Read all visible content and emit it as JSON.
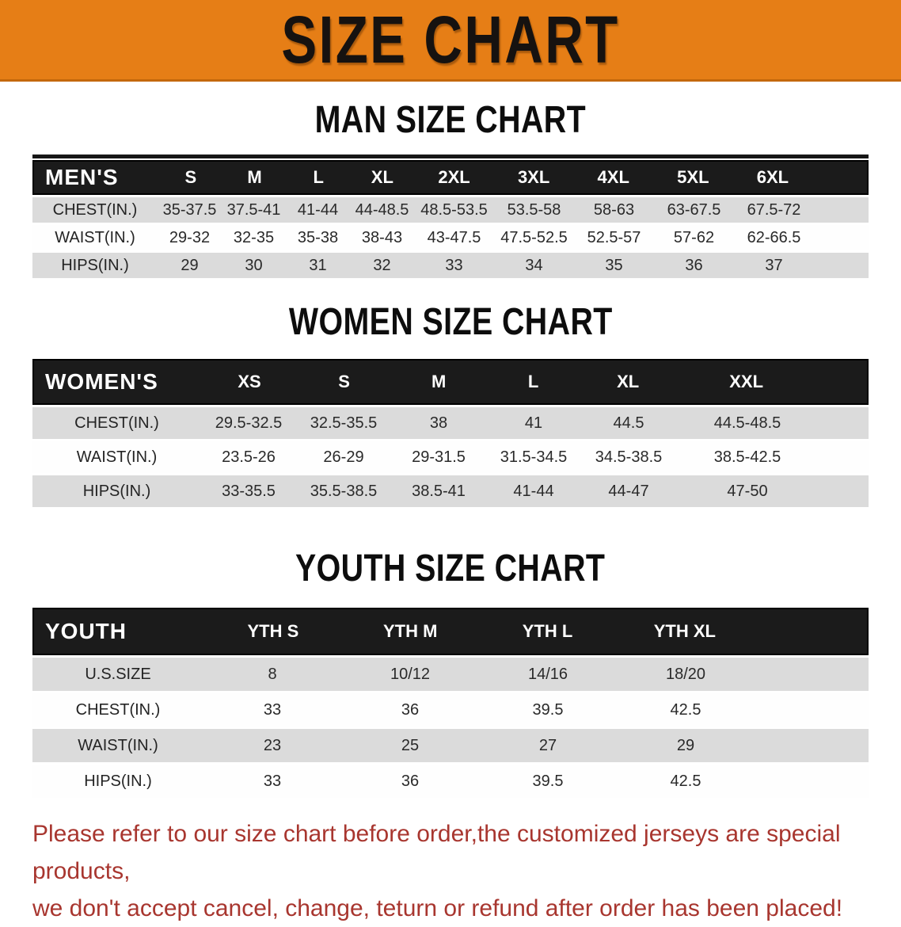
{
  "banner": {
    "title": "SIZE CHART"
  },
  "colors": {
    "banner_bg": "#E67E16",
    "banner_border": "#C4680C",
    "table_header_bg": "#1B1B1B",
    "row_alt_bg": "#DBDBDB",
    "data_text": "#2A2A2A",
    "footer_text": "#A8362F"
  },
  "sections": [
    {
      "heading": "MAN SIZE CHART",
      "group_label": "MEN'S",
      "columns": [
        "S",
        "M",
        "L",
        "XL",
        "2XL",
        "3XL",
        "4XL",
        "5XL",
        "6XL"
      ],
      "rows": [
        {
          "label": "CHEST(IN.)",
          "values": [
            "35-37.5",
            "37.5-41",
            "41-44",
            "44-48.5",
            "48.5-53.5",
            "53.5-58",
            "58-63",
            "63-67.5",
            "67.5-72"
          ]
        },
        {
          "label": "WAIST(IN.)",
          "values": [
            "29-32",
            "32-35",
            "35-38",
            "38-43",
            "43-47.5",
            "47.5-52.5",
            "52.5-57",
            "57-62",
            "62-66.5"
          ]
        },
        {
          "label": "HIPS(IN.)",
          "values": [
            "29",
            "30",
            "31",
            "32",
            "33",
            "34",
            "35",
            "36",
            "37"
          ]
        }
      ]
    },
    {
      "heading": "WOMEN SIZE CHART",
      "group_label": "WOMEN'S",
      "columns": [
        "XS",
        "S",
        "M",
        "L",
        "XL",
        "XXL"
      ],
      "rows": [
        {
          "label": "CHEST(IN.)",
          "values": [
            "29.5-32.5",
            "32.5-35.5",
            "38",
            "41",
            "44.5",
            "44.5-48.5"
          ]
        },
        {
          "label": "WAIST(IN.)",
          "values": [
            "23.5-26",
            "26-29",
            "29-31.5",
            "31.5-34.5",
            "34.5-38.5",
            "38.5-42.5"
          ]
        },
        {
          "label": "HIPS(IN.)",
          "values": [
            "33-35.5",
            "35.5-38.5",
            "38.5-41",
            "41-44",
            "44-47",
            "47-50"
          ]
        }
      ]
    },
    {
      "heading": "YOUTH SIZE CHART",
      "group_label": "YOUTH",
      "columns": [
        "YTH S",
        "YTH M",
        "YTH L",
        "YTH XL"
      ],
      "rows": [
        {
          "label": "U.S.SIZE",
          "values": [
            "8",
            "10/12",
            "14/16",
            "18/20"
          ]
        },
        {
          "label": "CHEST(IN.)",
          "values": [
            "33",
            "36",
            "39.5",
            "42.5"
          ]
        },
        {
          "label": "WAIST(IN.)",
          "values": [
            "23",
            "25",
            "27",
            "29"
          ]
        },
        {
          "label": "HIPS(IN.)",
          "values": [
            "33",
            "36",
            "39.5",
            "42.5"
          ]
        }
      ]
    }
  ],
  "footer": {
    "line1": "Please refer to our size chart before order,the customized jerseys are special products,",
    "line2": "we don't accept cancel, change, teturn or refund after order has been placed!"
  }
}
